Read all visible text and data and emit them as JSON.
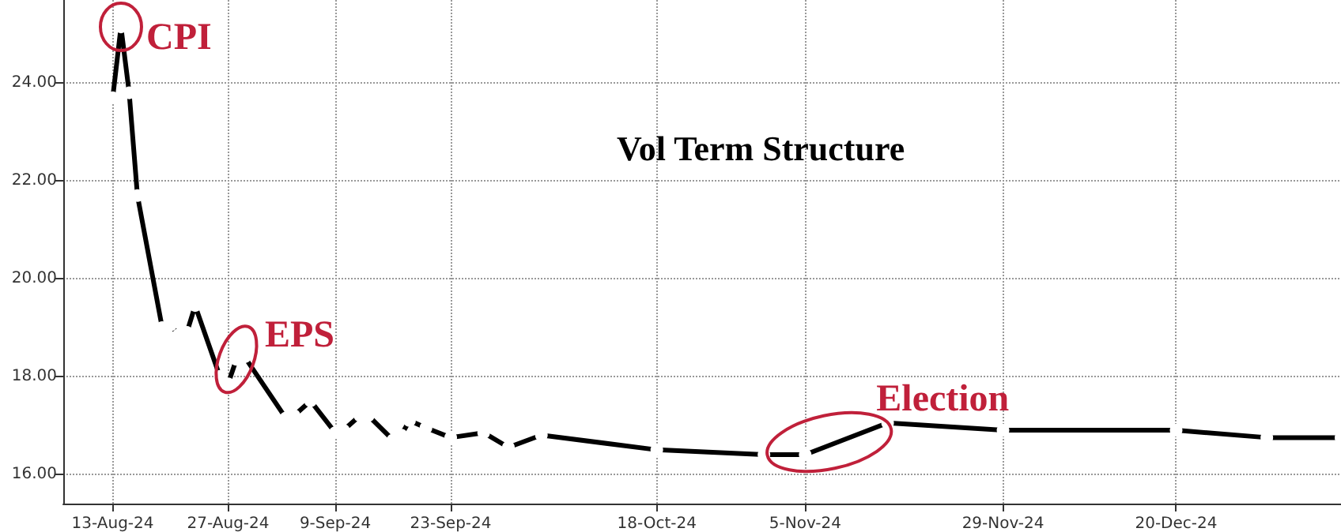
{
  "chart_data": {
    "type": "line",
    "title": "Vol Term Structure",
    "x": [
      "2024-08-13",
      "2024-08-14",
      "2024-08-15",
      "2024-08-16",
      "2024-08-19",
      "2024-08-20",
      "2024-08-21",
      "2024-08-22",
      "2024-08-23",
      "2024-08-26",
      "2024-08-27",
      "2024-08-28",
      "2024-08-29",
      "2024-09-03",
      "2024-09-04",
      "2024-09-06",
      "2024-09-09",
      "2024-09-10",
      "2024-09-12",
      "2024-09-13",
      "2024-09-16",
      "2024-09-17",
      "2024-09-18",
      "2024-09-20",
      "2024-09-23",
      "2024-09-27",
      "2024-09-30",
      "2024-10-04",
      "2024-10-18",
      "2024-10-31",
      "2024-11-05",
      "2024-11-15",
      "2024-11-29",
      "2024-12-20",
      "2024-12-31",
      "2025-01-09"
    ],
    "series": [
      {
        "color": "#000000",
        "values": [
          23.7,
          25.15,
          23.8,
          21.7,
          19.0,
          19.05,
          18.85,
          18.9,
          19.45,
          18.0,
          17.85,
          18.35,
          18.4,
          17.15,
          17.2,
          17.5,
          16.85,
          16.9,
          17.2,
          17.2,
          16.7,
          16.8,
          17.1,
          16.95,
          16.75,
          16.85,
          16.55,
          16.8,
          16.5,
          16.4,
          16.4,
          17.05,
          16.9,
          16.9,
          16.75,
          16.75
        ]
      }
    ],
    "xlim": [
      "2024-08-07",
      "2025-01-09"
    ],
    "xticks": [
      {
        "value": "2024-08-13",
        "label": "13-Aug-24"
      },
      {
        "value": "2024-08-27",
        "label": "27-Aug-24"
      },
      {
        "value": "2024-09-09",
        "label": "9-Sep-24"
      },
      {
        "value": "2024-09-23",
        "label": "23-Sep-24"
      },
      {
        "value": "2024-10-18",
        "label": "18-Oct-24"
      },
      {
        "value": "2024-11-05",
        "label": "5-Nov-24"
      },
      {
        "value": "2024-11-29",
        "label": "29-Nov-24"
      },
      {
        "value": "2024-12-20",
        "label": "20-Dec-24"
      }
    ],
    "ylim": [
      15.4,
      25.7
    ],
    "yticks": [
      {
        "value": 16,
        "label": "16.00"
      },
      {
        "value": 18,
        "label": "18.00"
      },
      {
        "value": 20,
        "label": "20.00"
      },
      {
        "value": 22,
        "label": "22.00"
      },
      {
        "value": 24,
        "label": "24.00"
      }
    ],
    "annotations": [
      {
        "text": "CPI",
        "x": "2024-08-14",
        "y": 25.15
      },
      {
        "text": "EPS",
        "x": "2024-08-28",
        "y": 18.35
      },
      {
        "text": "Election",
        "x": "2024-11-05",
        "y": 16.4
      }
    ],
    "grid": true,
    "marker": "circle",
    "line_style": "solid"
  }
}
